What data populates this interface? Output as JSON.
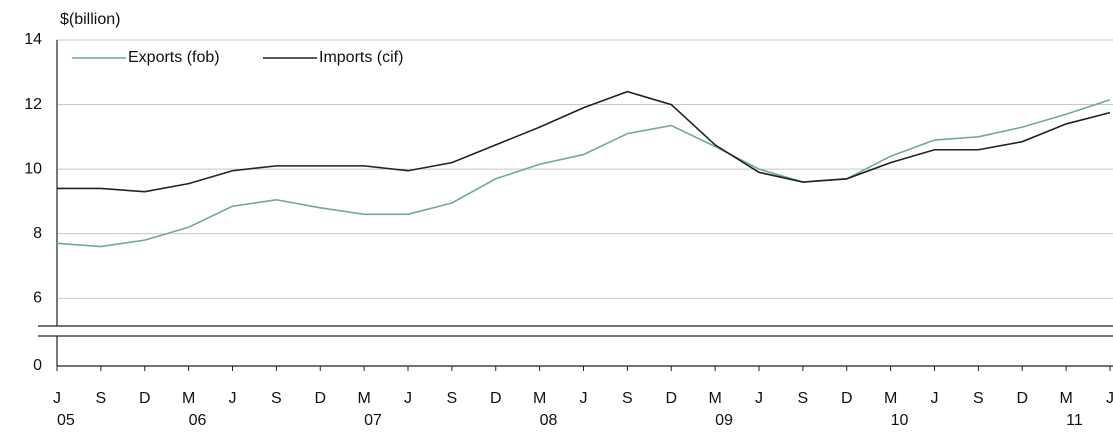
{
  "chart_data": {
    "type": "line",
    "y_axis_label": "$(billion)",
    "categories": [
      "J",
      "S",
      "D",
      "M",
      "J",
      "S",
      "D",
      "M",
      "J",
      "S",
      "D",
      "M",
      "J",
      "S",
      "D",
      "M",
      "J",
      "S",
      "D",
      "M",
      "J",
      "S",
      "D",
      "M",
      "J"
    ],
    "years": [
      "05",
      null,
      null,
      "06",
      null,
      null,
      null,
      "07",
      null,
      null,
      null,
      "08",
      null,
      null,
      null,
      "09",
      null,
      null,
      null,
      "10",
      null,
      null,
      null,
      "11",
      null
    ],
    "series": [
      {
        "name": "Exports (fob)",
        "color": "#6fa8a4",
        "values": [
          7.7,
          7.6,
          7.8,
          8.2,
          8.85,
          9.05,
          8.8,
          8.6,
          8.6,
          8.95,
          9.7,
          10.15,
          10.45,
          11.1,
          11.35,
          10.7,
          10.0,
          9.6,
          9.7,
          10.4,
          10.9,
          11.0,
          11.3,
          11.7,
          12.15
        ]
      },
      {
        "name": "Imports (cif)",
        "color": "#222222",
        "values": [
          9.4,
          9.4,
          9.3,
          9.55,
          9.95,
          10.1,
          10.1,
          10.1,
          9.95,
          10.2,
          10.75,
          11.3,
          11.9,
          12.4,
          12.0,
          10.75,
          9.9,
          9.6,
          9.7,
          10.2,
          10.6,
          10.6,
          10.85,
          11.4,
          11.75
        ]
      }
    ],
    "ylim": [
      5,
      14
    ],
    "yticks": [
      0,
      6,
      8,
      10,
      12,
      14
    ],
    "y_break": true,
    "grid": true,
    "legend": "top-left"
  }
}
